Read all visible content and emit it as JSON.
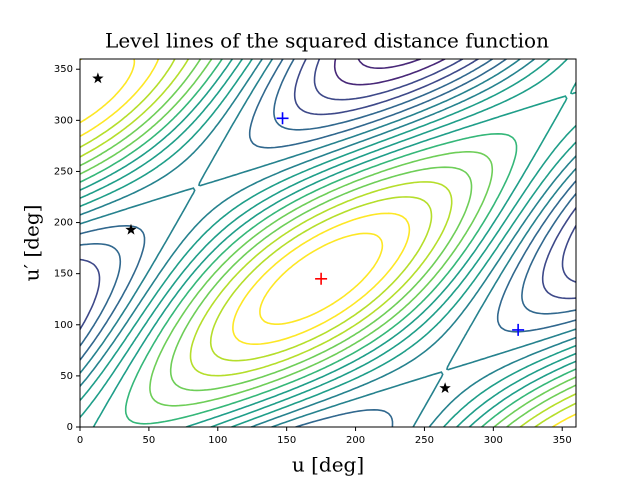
{
  "chart_data": {
    "type": "contour",
    "title": "Level lines of the squared distance function",
    "xlabel": "u [deg]",
    "ylabel": "u′ [deg]",
    "xlim": [
      0,
      360
    ],
    "ylim": [
      0,
      360
    ],
    "xticks": [
      0,
      50,
      100,
      150,
      200,
      250,
      300,
      350
    ],
    "yticks": [
      0,
      50,
      100,
      150,
      200,
      250,
      300,
      350
    ],
    "colormap": "viridis",
    "levels": [
      0.05,
      0.1,
      0.15,
      0.2,
      0.25,
      0.3,
      0.35,
      0.4,
      0.45,
      0.5,
      0.55,
      0.6,
      0.65,
      0.7,
      0.75,
      0.8,
      0.85,
      0.9,
      0.95
    ],
    "markers": [
      {
        "marker": "star",
        "color": "#000000",
        "x": [
          13,
          37,
          265
        ],
        "y": [
          341,
          193,
          38
        ]
      },
      {
        "marker": "plus",
        "color": "#0000ff",
        "x": [
          147,
          318
        ],
        "y": [
          302,
          95
        ]
      },
      {
        "marker": "plus",
        "color": "#ff0000",
        "x": [
          175
        ],
        "y": [
          145
        ]
      }
    ]
  }
}
